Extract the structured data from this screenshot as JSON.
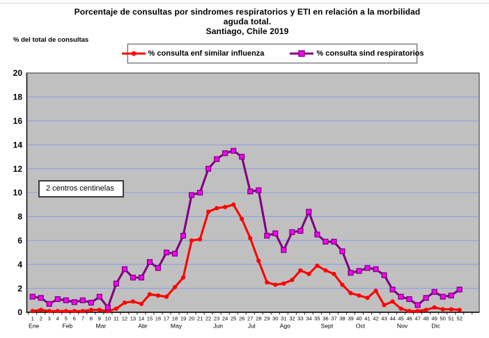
{
  "title": {
    "line1": "Porcentaje de consultas por sindromes respiratorios y  ETI en relación a la morbilidad",
    "line2": "aguda total.",
    "line3": "Santiago, Chile 2019"
  },
  "y_axis_unit_label": "% del total de consultas",
  "annotation_label": "2 centros centinelas",
  "legend": [
    {
      "label": "% consulta enf similar influenza"
    },
    {
      "label": "% consulta sind respiratorios"
    }
  ],
  "chart_data": {
    "type": "line",
    "title": "Porcentaje de consultas por sindromes respiratorios y ETI en relación a la morbilidad aguda total. Santiago, Chile 2019",
    "xlabel": "",
    "ylabel": "% del total de consultas",
    "x": [
      1,
      2,
      3,
      4,
      5,
      6,
      7,
      8,
      9,
      10,
      11,
      12,
      13,
      14,
      15,
      16,
      17,
      18,
      19,
      20,
      21,
      22,
      23,
      24,
      25,
      26,
      27,
      28,
      29,
      30,
      31,
      32,
      33,
      34,
      35,
      36,
      37,
      38,
      39,
      40,
      41,
      42,
      43,
      44,
      45,
      46,
      47,
      48,
      49,
      50,
      51,
      52
    ],
    "x_axis_months": [
      {
        "label": "Ene",
        "week": 1
      },
      {
        "label": "Feb",
        "week": 5
      },
      {
        "label": "Mar",
        "week": 9
      },
      {
        "label": "Abr",
        "week": 14
      },
      {
        "label": "May",
        "week": 18
      },
      {
        "label": "Jun",
        "week": 23
      },
      {
        "label": "Jul",
        "week": 27
      },
      {
        "label": "Ago",
        "week": 31
      },
      {
        "label": "Sept",
        "week": 36
      },
      {
        "label": "Oct",
        "week": 40
      },
      {
        "label": "Nov",
        "week": 45
      },
      {
        "label": "Dic",
        "week": 49
      }
    ],
    "series": [
      {
        "name": "% consulta enf similar influenza",
        "color": "#FF0000",
        "marker": "circle",
        "marker_fill": "#FF0000",
        "values": [
          0.1,
          0.2,
          0.1,
          0.1,
          0.1,
          0.1,
          0.1,
          0.2,
          0.2,
          0.1,
          0.3,
          0.8,
          0.9,
          0.7,
          1.5,
          1.4,
          1.3,
          2.1,
          2.9,
          6.0,
          6.1,
          8.4,
          8.7,
          8.8,
          9.0,
          7.8,
          6.2,
          4.3,
          2.5,
          2.3,
          2.4,
          2.7,
          3.5,
          3.2,
          3.9,
          3.5,
          3.2,
          2.3,
          1.6,
          1.4,
          1.2,
          1.8,
          0.6,
          0.9,
          0.3,
          0.1,
          0.1,
          0.2,
          0.4,
          0.25,
          0.25,
          0.2
        ]
      },
      {
        "name": "% consulta sind respiratorios",
        "color": "#800080",
        "marker": "square",
        "marker_fill": "#FF00FF",
        "values": [
          1.3,
          1.2,
          0.7,
          1.1,
          1.0,
          0.85,
          1.0,
          0.8,
          1.3,
          0.4,
          2.4,
          3.6,
          2.9,
          2.9,
          4.2,
          3.7,
          5.0,
          4.9,
          6.4,
          9.8,
          10.0,
          12.0,
          12.8,
          13.3,
          13.5,
          13.0,
          10.1,
          10.2,
          6.4,
          6.6,
          5.2,
          6.7,
          6.8,
          8.4,
          6.5,
          5.9,
          5.9,
          5.1,
          3.3,
          3.45,
          3.7,
          3.6,
          3.1,
          1.9,
          1.3,
          1.1,
          0.6,
          1.2,
          1.7,
          1.3,
          1.4,
          1.9
        ]
      }
    ],
    "ylim": [
      0,
      20
    ],
    "ytick_step": 2,
    "grid": true,
    "legend_position": "top",
    "plot_bg": "#C0C0C0",
    "gridline_color": "#8AA0E6",
    "axis_color": "#1a1a1a"
  }
}
